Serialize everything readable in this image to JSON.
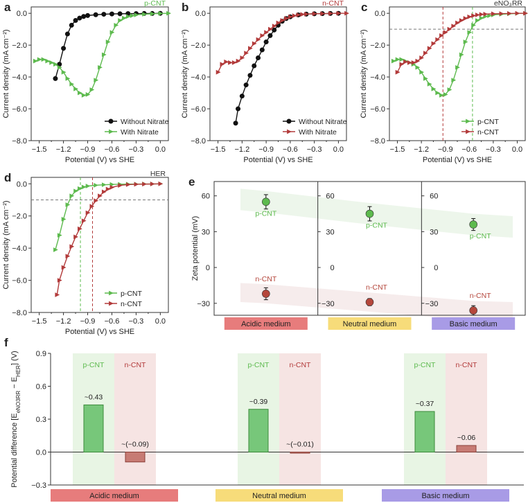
{
  "chart_data": [
    {
      "panel": "a",
      "type": "line",
      "tag": "p-CNT",
      "xlabel": "Potential (V) vs SHE",
      "ylabel": "Current density (mA cm⁻²)",
      "xlim": [
        -1.6,
        0.1
      ],
      "ylim": [
        -8.0,
        0.4
      ],
      "xticks": [
        "-1.5",
        "-1.2",
        "-0.9",
        "-0.6",
        "-0.3",
        "0.0"
      ],
      "yticks": [
        "0.0",
        "-2.0",
        "-4.0",
        "-6.0",
        "-8.0"
      ],
      "legend": "bottom-right",
      "series": [
        {
          "name": "Without Nitrate",
          "color": "#111111",
          "marker": "circle",
          "x": [
            -1.3,
            -1.25,
            -1.2,
            -1.15,
            -1.1,
            -1.05,
            -1.0,
            -0.95,
            -0.9,
            -0.8,
            -0.7,
            -0.6,
            -0.5,
            -0.4,
            -0.3,
            -0.2,
            -0.1,
            0.0
          ],
          "y": [
            -4.1,
            -3.2,
            -2.2,
            -1.3,
            -0.75,
            -0.45,
            -0.3,
            -0.2,
            -0.14,
            -0.09,
            -0.06,
            -0.04,
            -0.03,
            -0.02,
            -0.02,
            -0.01,
            -0.01,
            0.0
          ]
        },
        {
          "name": "With Nitrate",
          "color": "#5dba4e",
          "marker": "triangle",
          "x": [
            -1.55,
            -1.5,
            -1.45,
            -1.4,
            -1.35,
            -1.3,
            -1.25,
            -1.2,
            -1.15,
            -1.1,
            -1.05,
            -1.0,
            -0.95,
            -0.9,
            -0.85,
            -0.8,
            -0.75,
            -0.7,
            -0.65,
            -0.6,
            -0.55,
            -0.5,
            -0.45,
            -0.4,
            -0.35,
            -0.3,
            -0.2,
            -0.1,
            0.0,
            0.1
          ],
          "y": [
            -3.0,
            -2.9,
            -2.9,
            -3.0,
            -3.1,
            -3.2,
            -3.4,
            -3.7,
            -4.1,
            -4.45,
            -4.75,
            -5.0,
            -5.15,
            -5.1,
            -4.8,
            -4.2,
            -3.4,
            -2.6,
            -1.8,
            -1.2,
            -0.75,
            -0.45,
            -0.3,
            -0.2,
            -0.15,
            -0.1,
            -0.06,
            -0.03,
            -0.01,
            0.0
          ]
        }
      ]
    },
    {
      "panel": "b",
      "type": "line",
      "tag": "n-CNT",
      "xlabel": "Potential (V) vs SHE",
      "ylabel": "Current density (mA cm⁻²)",
      "xlim": [
        -1.6,
        0.1
      ],
      "ylim": [
        -8.0,
        0.4
      ],
      "xticks": [
        "-1.5",
        "-1.2",
        "-0.9",
        "-0.6",
        "-0.3",
        "0.0"
      ],
      "yticks": [
        "0.0",
        "-2.0",
        "-4.0",
        "-6.0",
        "-8.0"
      ],
      "legend": "bottom-right",
      "series": [
        {
          "name": "Without Nitrate",
          "color": "#111111",
          "marker": "circle",
          "x": [
            -1.28,
            -1.25,
            -1.2,
            -1.15,
            -1.1,
            -1.05,
            -1.0,
            -0.95,
            -0.9,
            -0.85,
            -0.8,
            -0.75,
            -0.7,
            -0.65,
            -0.6,
            -0.5,
            -0.4,
            -0.3,
            -0.2,
            -0.1,
            0.0
          ],
          "y": [
            -6.9,
            -6.0,
            -5.2,
            -4.5,
            -3.9,
            -3.3,
            -2.8,
            -2.3,
            -1.8,
            -1.4,
            -1.05,
            -0.75,
            -0.5,
            -0.33,
            -0.22,
            -0.1,
            -0.05,
            -0.03,
            -0.02,
            -0.01,
            0.0
          ]
        },
        {
          "name": "With Nitrate",
          "color": "#b23a3a",
          "marker": "triangle",
          "x": [
            -1.5,
            -1.45,
            -1.4,
            -1.35,
            -1.3,
            -1.25,
            -1.2,
            -1.15,
            -1.1,
            -1.05,
            -1.0,
            -0.95,
            -0.9,
            -0.85,
            -0.8,
            -0.75,
            -0.7,
            -0.65,
            -0.6,
            -0.55,
            -0.5,
            -0.45,
            -0.4,
            -0.3,
            -0.2,
            -0.1,
            0.0,
            0.1
          ],
          "y": [
            -3.7,
            -3.2,
            -3.05,
            -3.1,
            -3.1,
            -3.0,
            -2.8,
            -2.5,
            -2.2,
            -1.9,
            -1.65,
            -1.4,
            -1.2,
            -1.0,
            -0.8,
            -0.6,
            -0.45,
            -0.32,
            -0.22,
            -0.15,
            -0.1,
            -0.07,
            -0.05,
            -0.03,
            -0.02,
            -0.01,
            0.0,
            0.0
          ]
        }
      ]
    },
    {
      "panel": "c",
      "type": "line",
      "tag": "eNO₃RR",
      "xlabel": "Potential (V) vs SHE",
      "ylabel": "Current density (mA cm⁻²)",
      "xlim": [
        -1.6,
        0.1
      ],
      "ylim": [
        -8.0,
        0.4
      ],
      "xticks": [
        "-1.5",
        "-1.2",
        "-0.9",
        "-0.6",
        "-0.3",
        "0.0"
      ],
      "yticks": [
        "0.0",
        "-2.0",
        "-4.0",
        "-6.0",
        "-8.0"
      ],
      "legend": "bottom-right",
      "reference_lines": {
        "y": -1.0,
        "x_pCNT": -0.56,
        "x_nCNT": -0.93
      },
      "series": [
        {
          "name": "p-CNT",
          "color": "#5dba4e",
          "marker": "triangle"
        },
        {
          "name": "n-CNT",
          "color": "#b23a3a",
          "marker": "triangle"
        }
      ]
    },
    {
      "panel": "d",
      "type": "line",
      "tag": "HER",
      "xlabel": "Potential (V) vs SHE",
      "ylabel": "Current density (mA cm⁻²)",
      "xlim": [
        -1.6,
        0.1
      ],
      "ylim": [
        -8.0,
        0.4
      ],
      "xticks": [
        "-1.5",
        "-1.2",
        "-0.9",
        "-0.6",
        "-0.3",
        "0.0"
      ],
      "yticks": [
        "0.0",
        "-2.0",
        "-4.0",
        "-6.0",
        "-8.0"
      ],
      "legend": "bottom-right",
      "reference_lines": {
        "y": -1.0,
        "x_pCNT": -0.99,
        "x_nCNT": -0.84
      },
      "series": [
        {
          "name": "p-CNT",
          "color": "#5dba4e",
          "marker": "triangle"
        },
        {
          "name": "n-CNT",
          "color": "#b23a3a",
          "marker": "triangle"
        }
      ]
    },
    {
      "panel": "e",
      "type": "scatter",
      "ylabel": "Zeta potential (mV)",
      "ylim": [
        -40,
        72
      ],
      "yticks": [
        "60",
        "30",
        "0",
        "-30"
      ],
      "categories": [
        "Acidic medium",
        "Neutral medium",
        "Basic medium"
      ],
      "category_colors": [
        "#e77c7c",
        "#f7dc7a",
        "#a89be6"
      ],
      "series": [
        {
          "name": "p-CNT",
          "color": "#5dba4e",
          "values": [
            55,
            45,
            36
          ],
          "errors": [
            6,
            6,
            5
          ]
        },
        {
          "name": "n-CNT",
          "color": "#b5473c",
          "values": [
            -22,
            -29,
            -36
          ],
          "errors": [
            5,
            3,
            4
          ]
        }
      ]
    },
    {
      "panel": "f",
      "type": "bar",
      "ylabel": "Potential difference [Eₑₙₒ₃ᵣᵣ − Eₕₑᵣ] (V)",
      "ylabel_parts": {
        "prefix": "Potential difference [E",
        "sub1": "eNO",
        "sub1b": "3",
        "sub1c": "RR",
        "mid": " − E",
        "sub2": "HER",
        "suffix": "] (V)"
      },
      "ylim": [
        -0.3,
        0.9
      ],
      "yticks": [
        "0.9",
        "0.6",
        "0.3",
        "0.0",
        "-0.3"
      ],
      "categories": [
        "Acidic medium",
        "Neutral medium",
        "Basic medium"
      ],
      "category_colors": [
        "#e77c7c",
        "#f7dc7a",
        "#a89be6"
      ],
      "series": [
        {
          "name": "p-CNT",
          "color": "#77c77a",
          "values": [
            0.43,
            0.39,
            0.37
          ],
          "labels": [
            "~0.43",
            "~0.39",
            "~0.37"
          ]
        },
        {
          "name": "n-CNT",
          "color": "#c77b74",
          "values": [
            -0.09,
            -0.01,
            0.06
          ],
          "labels": [
            "~(−0.09)",
            "~(−0.01)",
            "~0.06"
          ]
        }
      ]
    }
  ],
  "panel_letters": [
    "a",
    "b",
    "c",
    "d",
    "e",
    "f"
  ]
}
